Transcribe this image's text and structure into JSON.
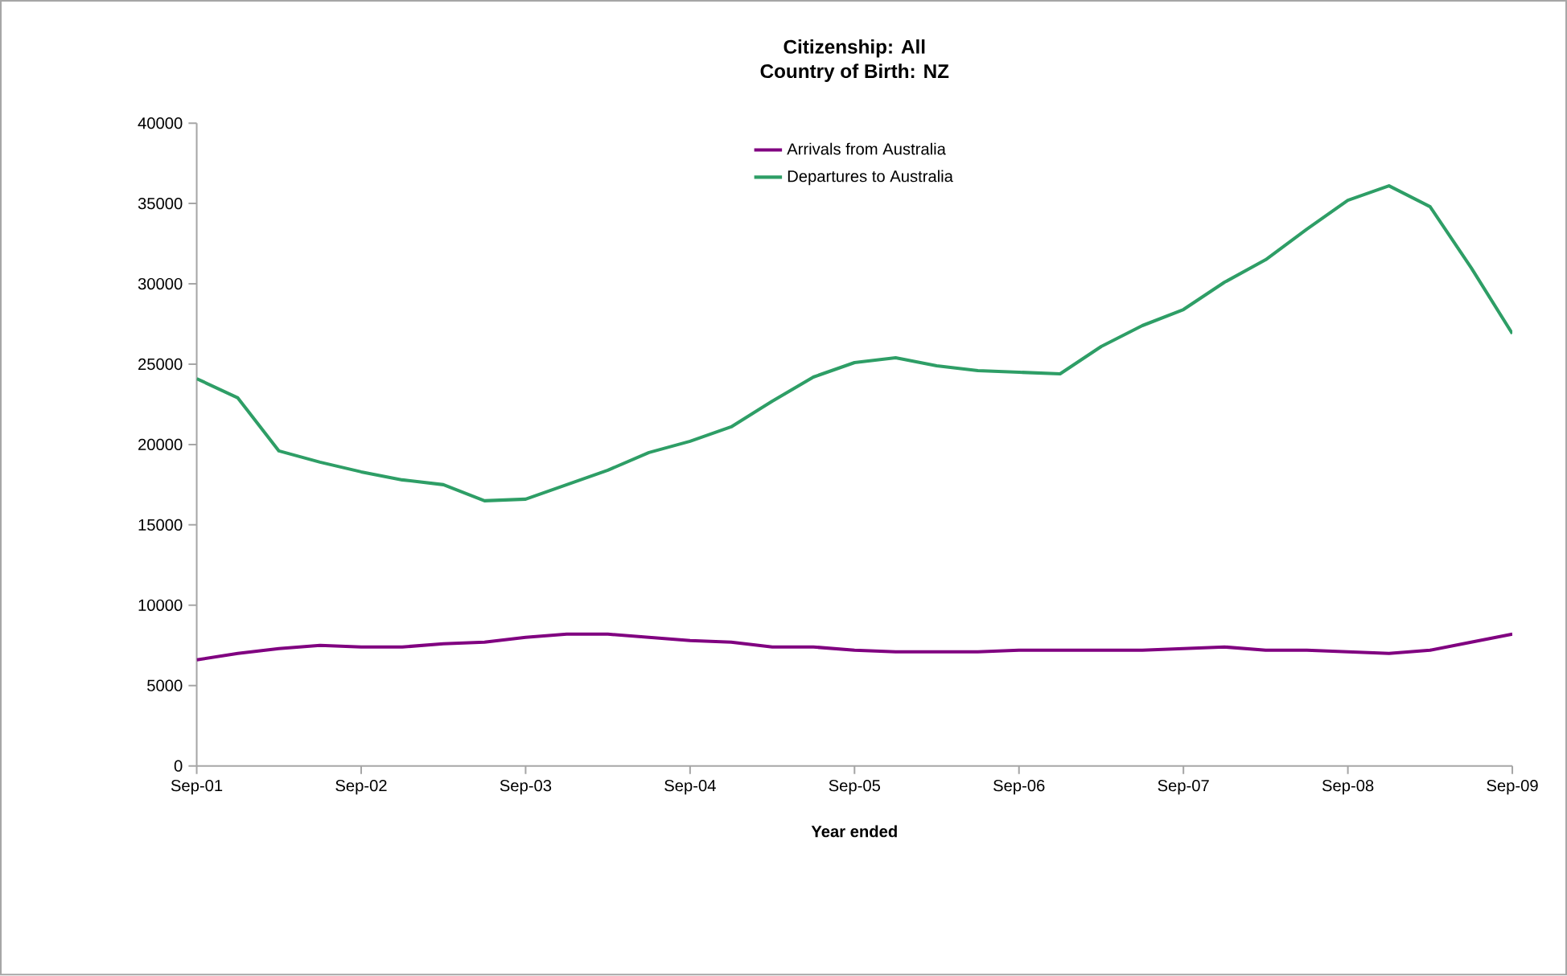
{
  "chart_data": {
    "type": "line",
    "title": "Citizenship: All",
    "subtitle": "Country of Birth: NZ",
    "xlabel": "Year ended",
    "categories": [
      "Sep-01",
      null,
      null,
      null,
      "Sep-02",
      null,
      null,
      null,
      "Sep-03",
      null,
      null,
      null,
      "Sep-04",
      null,
      null,
      null,
      "Sep-05",
      null,
      null,
      null,
      "Sep-06",
      null,
      null,
      null,
      "Sep-07",
      null,
      null,
      null,
      "Sep-08",
      null,
      null,
      null,
      "Sep-09"
    ],
    "series": [
      {
        "name": "Arrivals from Australia",
        "color": "#800080",
        "values": [
          6600,
          7000,
          7300,
          7500,
          7400,
          7400,
          7600,
          7700,
          8000,
          8200,
          8200,
          8000,
          7800,
          7700,
          7400,
          7400,
          7200,
          7100,
          7100,
          7100,
          7200,
          7200,
          7200,
          7200,
          7300,
          7400,
          7200,
          7200,
          7100,
          7000,
          7200,
          7700,
          8200
        ]
      },
      {
        "name": "Departures to Australia",
        "color": "#2e9e66",
        "values": [
          24100,
          22900,
          19600,
          18900,
          18300,
          17800,
          17500,
          16500,
          16600,
          17500,
          18400,
          19500,
          20200,
          21100,
          22700,
          24200,
          25100,
          25400,
          24900,
          24600,
          24500,
          24400,
          26100,
          27400,
          28400,
          30100,
          31500,
          33400,
          35200,
          36100,
          34800,
          31000,
          26900
        ]
      }
    ],
    "ylim": [
      0,
      40000
    ],
    "yticks": [
      0,
      5000,
      10000,
      15000,
      20000,
      25000,
      30000,
      35000,
      40000
    ],
    "grid": false,
    "legend": "top",
    "marker": "none",
    "line_style": "solid"
  }
}
